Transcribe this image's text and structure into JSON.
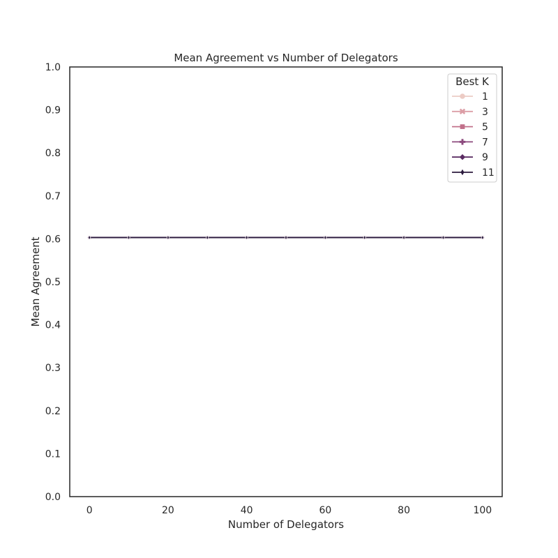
{
  "chart_data": {
    "type": "line",
    "title": "Mean Agreement vs Number of Delegators",
    "xlabel": "Number of Delegators",
    "ylabel": "Mean Agreement",
    "xlim": [
      -5,
      105
    ],
    "ylim": [
      0,
      1
    ],
    "x_ticks": [
      0,
      20,
      40,
      60,
      80,
      100
    ],
    "y_ticks": [
      0.0,
      0.1,
      0.2,
      0.3,
      0.4,
      0.5,
      0.6,
      0.7,
      0.8,
      0.9,
      1.0
    ],
    "x_tick_labels": [
      "0",
      "20",
      "40",
      "60",
      "80",
      "100"
    ],
    "y_tick_labels": [
      "0.0",
      "0.1",
      "0.2",
      "0.3",
      "0.4",
      "0.5",
      "0.6",
      "0.7",
      "0.8",
      "0.9",
      "1.0"
    ],
    "grid": false,
    "legend": {
      "title": "Best K",
      "placement": "top-right"
    },
    "x": [
      0,
      10,
      20,
      30,
      40,
      50,
      60,
      70,
      80,
      90,
      100
    ],
    "series": [
      {
        "name": "1",
        "color": "#eccbc4",
        "marker": "circle",
        "values": [
          0.603,
          0.603,
          0.603,
          0.603,
          0.603,
          0.603,
          0.603,
          0.603,
          0.603,
          0.603,
          0.603
        ]
      },
      {
        "name": "3",
        "color": "#dc9ea6",
        "marker": "x",
        "values": [
          0.603,
          0.603,
          0.603,
          0.603,
          0.603,
          0.603,
          0.603,
          0.603,
          0.603,
          0.603,
          0.603
        ]
      },
      {
        "name": "5",
        "color": "#c1708a",
        "marker": "square",
        "values": [
          0.603,
          0.603,
          0.603,
          0.603,
          0.603,
          0.603,
          0.603,
          0.603,
          0.603,
          0.603,
          0.603
        ]
      },
      {
        "name": "7",
        "color": "#8c4a7e",
        "marker": "plus",
        "values": [
          0.603,
          0.603,
          0.603,
          0.603,
          0.603,
          0.603,
          0.603,
          0.603,
          0.603,
          0.603,
          0.603
        ]
      },
      {
        "name": "9",
        "color": "#5a2b62",
        "marker": "diamond",
        "values": [
          0.603,
          0.603,
          0.603,
          0.603,
          0.603,
          0.603,
          0.603,
          0.603,
          0.603,
          0.603,
          0.603
        ]
      },
      {
        "name": "11",
        "color": "#2b1a3d",
        "marker": "thin_diamond",
        "values": [
          0.603,
          0.603,
          0.603,
          0.603,
          0.603,
          0.603,
          0.603,
          0.603,
          0.603,
          0.603,
          0.603
        ]
      }
    ]
  }
}
